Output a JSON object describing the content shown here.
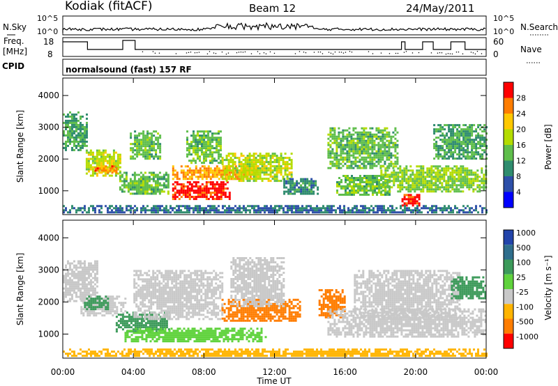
{
  "header": {
    "station": "Kodiak (fitACF)",
    "beam": "Beam 12",
    "date": "24/May/2011"
  },
  "top_panels": {
    "nsky": {
      "label": "N.Sky",
      "left_ticks": [
        "10^5",
        "10^0"
      ],
      "right_ticks": [
        "10^5",
        "10^0"
      ],
      "right_label": "N.Search"
    },
    "freq": {
      "label_line1": "Freq.",
      "label_line2": "[MHz]",
      "left_ticks": [
        "18",
        "8"
      ],
      "right_ticks": [
        "60",
        "0"
      ],
      "right_label": "Nave"
    },
    "cpid": {
      "label": "CPID",
      "text": "normalsound (fast) 157 RF"
    }
  },
  "chart_data": [
    {
      "type": "heatmap",
      "name": "power",
      "ylabel": "Slant Range [km]",
      "xlabel": "Time UT",
      "ylim": [
        250,
        4550
      ],
      "yticks": [
        "1000",
        "2000",
        "3000",
        "4000"
      ],
      "xticks": [
        "00:00",
        "04:00",
        "08:00",
        "12:00",
        "16:00",
        "20:00",
        "00:00"
      ],
      "colorbar": {
        "label": "Power [dB]",
        "ticks": [
          "28",
          "24",
          "20",
          "16",
          "12",
          "8",
          "4"
        ],
        "colors": [
          "#ff0000",
          "#ff7d00",
          "#ffc800",
          "#b4dc00",
          "#5fbe4b",
          "#2f8c6e",
          "#2d4fa8",
          "#0000ff"
        ]
      },
      "blobs": [
        {
          "t": [
            0.0,
            1.4
          ],
          "r": [
            2300,
            3500
          ],
          "v": 10
        },
        {
          "t": [
            1.3,
            3.2
          ],
          "r": [
            1500,
            2300
          ],
          "v": 16
        },
        {
          "t": [
            1.8,
            3.0
          ],
          "r": [
            1550,
            1800
          ],
          "v": 24
        },
        {
          "t": [
            3.2,
            6.0
          ],
          "r": [
            900,
            1600
          ],
          "v": 12
        },
        {
          "t": [
            3.8,
            5.5
          ],
          "r": [
            2000,
            2900
          ],
          "v": 12
        },
        {
          "t": [
            6.2,
            9.5
          ],
          "r": [
            750,
            1300
          ],
          "v": 28
        },
        {
          "t": [
            6.2,
            11.0
          ],
          "r": [
            1400,
            1800
          ],
          "v": 22
        },
        {
          "t": [
            9.0,
            13.0
          ],
          "r": [
            1300,
            2200
          ],
          "v": 16
        },
        {
          "t": [
            7.0,
            9.0
          ],
          "r": [
            1900,
            2900
          ],
          "v": 12
        },
        {
          "t": [
            12.5,
            14.5
          ],
          "r": [
            900,
            1400
          ],
          "v": 8
        },
        {
          "t": [
            15.0,
            19.0
          ],
          "r": [
            1700,
            3000
          ],
          "v": 12
        },
        {
          "t": [
            15.5,
            18.5
          ],
          "r": [
            900,
            1500
          ],
          "v": 12
        },
        {
          "t": [
            18.0,
            24.0
          ],
          "r": [
            1000,
            1800
          ],
          "v": 14
        },
        {
          "t": [
            19.2,
            20.2
          ],
          "r": [
            550,
            900
          ],
          "v": 28
        },
        {
          "t": [
            21.0,
            24.0
          ],
          "r": [
            2000,
            3100
          ],
          "v": 10
        },
        {
          "t": [
            0.0,
            24.0
          ],
          "r": [
            300,
            550
          ],
          "v": 6
        }
      ]
    },
    {
      "type": "heatmap",
      "name": "velocity",
      "ylabel": "Slant Range [km]",
      "xlabel": "Time UT",
      "ylim": [
        250,
        4550
      ],
      "yticks": [
        "1000",
        "2000",
        "3000",
        "4000"
      ],
      "xticks": [
        "00:00",
        "04:00",
        "08:00",
        "12:00",
        "16:00",
        "20:00",
        "00:00"
      ],
      "colorbar": {
        "label": "Velocity [m s⁻¹]",
        "ticks": [
          "1000",
          "500",
          "100",
          "25",
          "-25",
          "-100",
          "-500",
          "-1000"
        ],
        "colors": [
          "#2244aa",
          "#2f6e8c",
          "#3c9a5a",
          "#5fd23c",
          "#c8c8c8",
          "#ffb400",
          "#ff7d00",
          "#ff0000"
        ]
      },
      "blobs": [
        {
          "t": [
            0.0,
            2.0
          ],
          "r": [
            2000,
            3300
          ],
          "v": 0
        },
        {
          "t": [
            1.0,
            3.5
          ],
          "r": [
            1600,
            2200
          ],
          "v": 0
        },
        {
          "t": [
            1.2,
            2.6
          ],
          "r": [
            1800,
            2200
          ],
          "v": 200
        },
        {
          "t": [
            3.0,
            6.0
          ],
          "r": [
            1100,
            1700
          ],
          "v": 200
        },
        {
          "t": [
            3.5,
            11.5
          ],
          "r": [
            800,
            1200
          ],
          "v": 70
        },
        {
          "t": [
            4.0,
            9.0
          ],
          "r": [
            1500,
            3000
          ],
          "v": 0
        },
        {
          "t": [
            9.0,
            13.5
          ],
          "r": [
            1400,
            2100
          ],
          "v": -300
        },
        {
          "t": [
            9.5,
            12.5
          ],
          "r": [
            1900,
            3400
          ],
          "v": 0
        },
        {
          "t": [
            14.5,
            16.0
          ],
          "r": [
            1500,
            2400
          ],
          "v": -400
        },
        {
          "t": [
            15.0,
            24.0
          ],
          "r": [
            900,
            1800
          ],
          "v": 0
        },
        {
          "t": [
            16.5,
            22.5
          ],
          "r": [
            1500,
            3000
          ],
          "v": 0
        },
        {
          "t": [
            22.0,
            24.0
          ],
          "r": [
            2100,
            2800
          ],
          "v": 300
        },
        {
          "t": [
            0.0,
            24.0
          ],
          "r": [
            300,
            550
          ],
          "v": -50
        }
      ]
    }
  ]
}
